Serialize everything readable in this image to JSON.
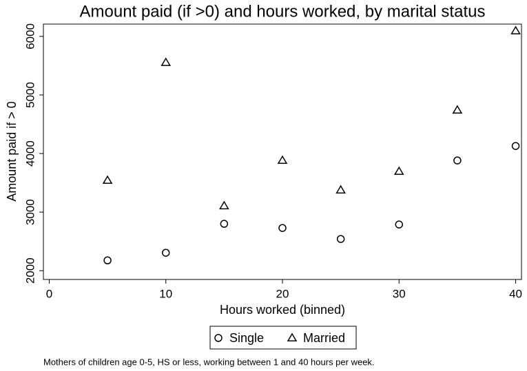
{
  "chart_data": {
    "type": "scatter",
    "title": "Amount paid (if >0) and hours worked, by marital status",
    "x_label": "Hours worked (binned)",
    "y_label": "Amount paid if > 0",
    "note": "Mothers of children age 0-5, HS or less, working between 1 and 40 hours per week.",
    "x": [
      5,
      10,
      15,
      20,
      25,
      30,
      35,
      40
    ],
    "series": [
      {
        "name": "Single",
        "color": "#000000",
        "marker": "circle",
        "values": [
          2176,
          2306,
          2800,
          2729,
          2541,
          2788,
          3882,
          4129
        ]
      },
      {
        "name": "Married",
        "color": "#000000",
        "marker": "triangle",
        "values": [
          3541,
          5553,
          3106,
          3882,
          3376,
          3694,
          4741,
          6094
        ]
      }
    ],
    "xlim": [
      -0.5,
      40.5
    ],
    "xticks": [
      0,
      10,
      20,
      30,
      40
    ],
    "ylim": [
      1850,
      6210
    ],
    "yticks": [
      2000,
      3000,
      4000,
      5000,
      6000
    ],
    "grid": false,
    "legend": "bottom"
  }
}
